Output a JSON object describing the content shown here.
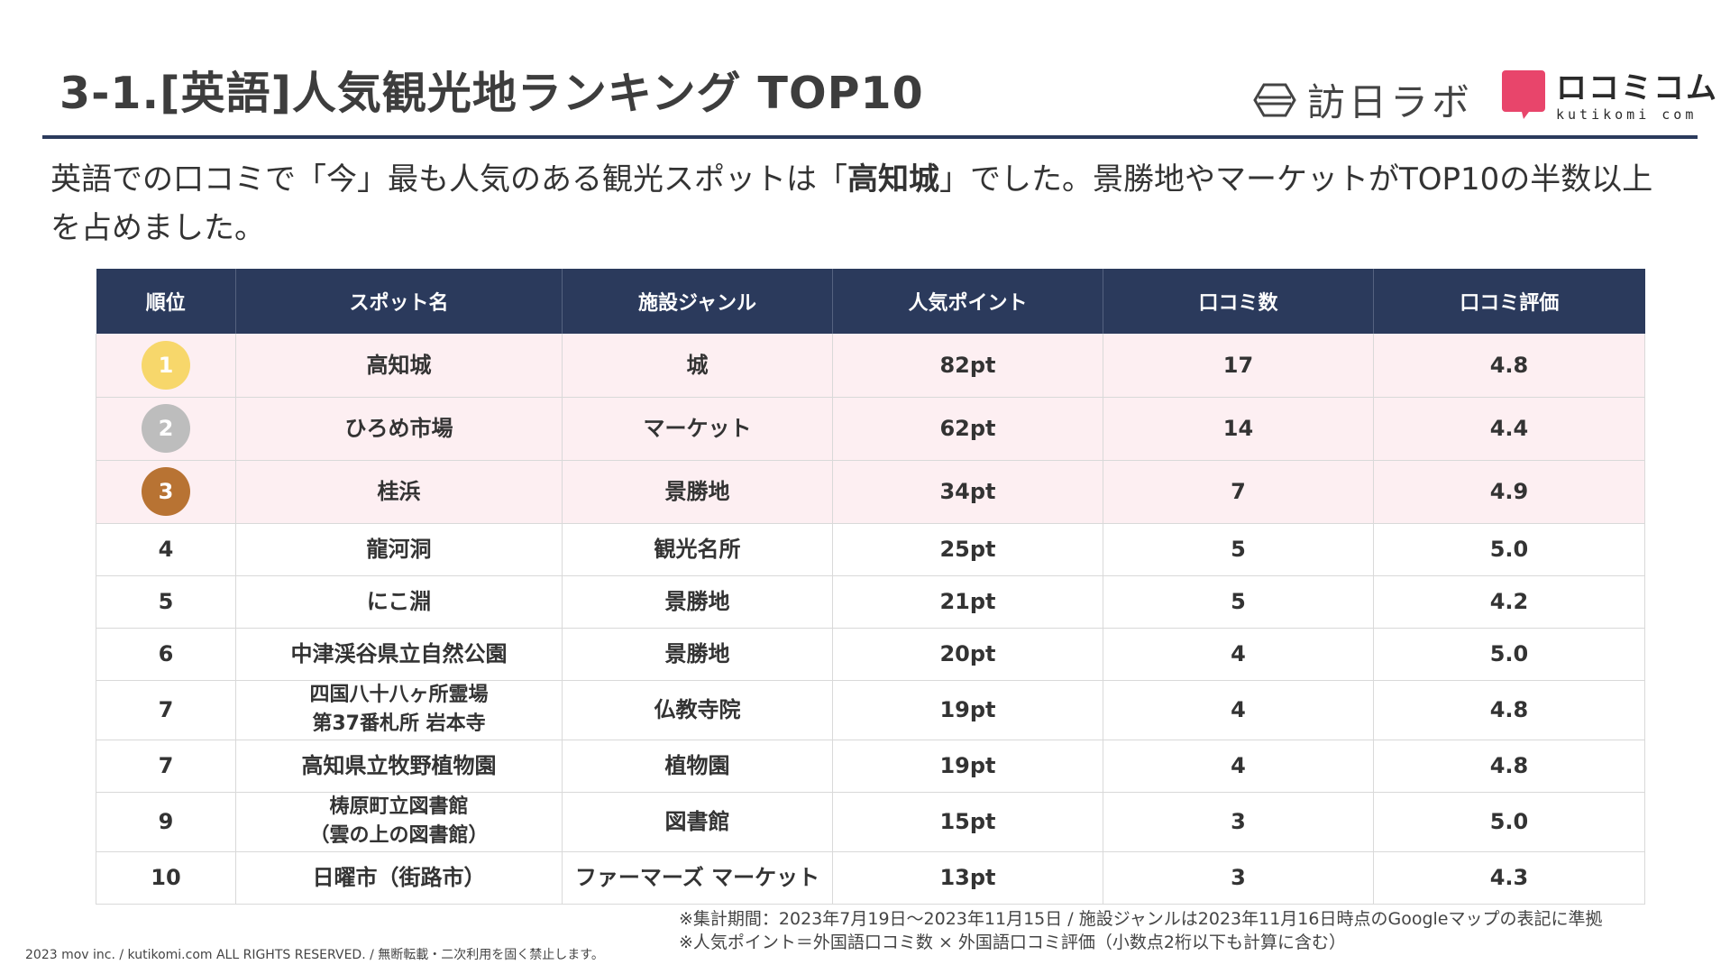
{
  "header": {
    "title": "3-1.[英語]人気観光地ランキング TOP10",
    "logo_labo_text": "訪日ラボ",
    "logo_kuti_jp": "ロコミコム",
    "logo_kuti_en": "kutikomi com"
  },
  "lead": {
    "part1": "英語での口コミで「今」最も人気のある観光スポットは「",
    "highlight": "高知城",
    "part2": "」でした。景勝地やマーケットがTOP10の半数以上を占めました。"
  },
  "table": {
    "headers": [
      "順位",
      "スポット名",
      "施設ジャンル",
      "人気ポイント",
      "口コミ数",
      "口コミ評価"
    ],
    "rows": [
      {
        "rank": "1",
        "name": "高知城",
        "genre": "城",
        "points": "82pt",
        "reviews": "17",
        "rating": "4.8",
        "medal": "#f7d76b"
      },
      {
        "rank": "2",
        "name": "ひろめ市場",
        "genre": "マーケット",
        "points": "62pt",
        "reviews": "14",
        "rating": "4.4",
        "medal": "#bdbdbd"
      },
      {
        "rank": "3",
        "name": "桂浜",
        "genre": "景勝地",
        "points": "34pt",
        "reviews": "7",
        "rating": "4.9",
        "medal": "#b87333"
      },
      {
        "rank": "4",
        "name": "龍河洞",
        "genre": "観光名所",
        "points": "25pt",
        "reviews": "5",
        "rating": "5.0"
      },
      {
        "rank": "5",
        "name": "にこ淵",
        "genre": "景勝地",
        "points": "21pt",
        "reviews": "5",
        "rating": "4.2"
      },
      {
        "rank": "6",
        "name": "中津渓谷県立自然公園",
        "genre": "景勝地",
        "points": "20pt",
        "reviews": "4",
        "rating": "5.0"
      },
      {
        "rank": "7",
        "name": "四国八十八ヶ所霊場",
        "name2": "第37番札所 岩本寺",
        "genre": "仏教寺院",
        "points": "19pt",
        "reviews": "4",
        "rating": "4.8"
      },
      {
        "rank": "7",
        "name": "高知県立牧野植物園",
        "genre": "植物園",
        "points": "19pt",
        "reviews": "4",
        "rating": "4.8"
      },
      {
        "rank": "9",
        "name": "梼原町立図書館",
        "name2": "（雲の上の図書館）",
        "genre": "図書館",
        "points": "15pt",
        "reviews": "3",
        "rating": "5.0"
      },
      {
        "rank": "10",
        "name": "日曜市（街路市）",
        "genre": "ファーマーズ マーケット",
        "points": "13pt",
        "reviews": "3",
        "rating": "4.3"
      }
    ]
  },
  "notes": {
    "line1": "※集計期間：2023年7月19日～2023年11月15日 / 施設ジャンルは2023年11月16日時点のGoogleマップの表記に準拠",
    "line2": "※人気ポイント＝外国語口コミ数 × 外国語口コミ評価（小数点2桁以下も計算に含む）"
  },
  "footer": {
    "copyright": "2023 mov inc. / kutikomi.com ALL RIGHTS RESERVED. / 無断転載・二次利用を固く禁止します。"
  },
  "colors": {
    "header_bg": "#2b3a5c",
    "top3_row_bg": "#fdeff2",
    "logo_pink": "#e8456b"
  }
}
